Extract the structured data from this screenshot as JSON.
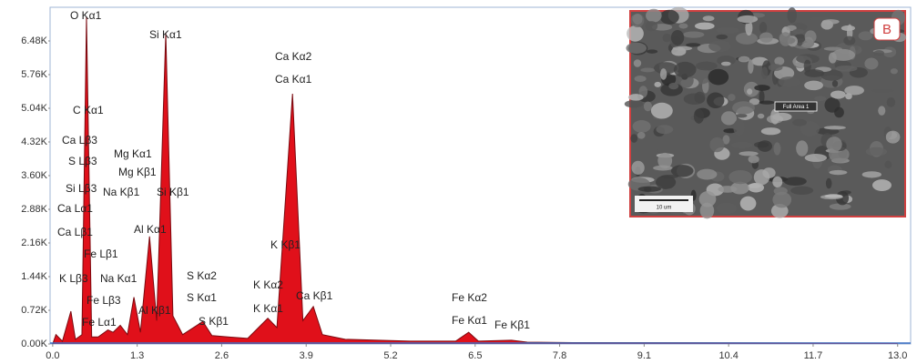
{
  "chart_data": {
    "type": "area",
    "x": [
      0.0,
      0.05,
      0.15,
      0.28,
      0.35,
      0.45,
      0.52,
      0.6,
      0.7,
      0.85,
      0.93,
      1.04,
      1.15,
      1.25,
      1.35,
      1.49,
      1.6,
      1.74,
      1.85,
      2.0,
      2.31,
      2.45,
      2.7,
      3.0,
      3.31,
      3.45,
      3.69,
      3.85,
      4.01,
      4.15,
      4.5,
      5.5,
      6.2,
      6.4,
      6.55,
      7.06,
      7.3,
      8.0,
      13.0
    ],
    "values": [
      0,
      200,
      60,
      700,
      100,
      200,
      7000,
      150,
      150,
      300,
      250,
      400,
      200,
      1000,
      250,
      2300,
      500,
      6650,
      600,
      200,
      480,
      180,
      150,
      120,
      550,
      350,
      5350,
      500,
      800,
      200,
      100,
      60,
      60,
      250,
      60,
      80,
      40,
      30,
      20
    ],
    "color": "#e0101a",
    "xlim": [
      -0.04,
      13.2
    ],
    "ylim": [
      0,
      7200
    ],
    "xticks": [
      {
        "value": 0,
        "label": "0.0"
      },
      1.3,
      2.6,
      3.9,
      5.2,
      6.5,
      7.8,
      9.1,
      10.4,
      11.7,
      {
        "value": 13,
        "label": "13.0"
      }
    ],
    "yticks": [
      {
        "value": 0,
        "label": "0.00K"
      },
      {
        "value": 720,
        "label": "0.72K"
      },
      {
        "value": 1440,
        "label": "1.44K"
      },
      {
        "value": 2160,
        "label": "2.16K"
      },
      {
        "value": 2880,
        "label": "2.88K"
      },
      {
        "value": 3600,
        "label": "3.60K"
      },
      {
        "value": 4320,
        "label": "4.32K"
      },
      {
        "value": 5040,
        "label": "5.04K"
      },
      {
        "value": 5760,
        "label": "5.76K"
      },
      {
        "value": 6480,
        "label": "6.48K"
      }
    ],
    "annotations": [
      "O Kα1",
      "Si Kα1",
      "C Kα1",
      "Ca Lβ3",
      "Mg Kα1",
      "S Lβ3",
      "Mg Kβ1",
      "Si Lβ3",
      "Na Kβ1",
      "Si Kβ1",
      "Ca Lα1",
      "Al Kα1",
      "Ca Lβ1",
      "Fe Lβ1",
      "K Kβ1",
      "K Lβ3",
      "Na Kα1",
      "S Kα2",
      "K Kα2",
      "Fe Lβ3",
      "S Kα1",
      "K Kα1",
      "Ca Kβ1",
      "Fe Lα1",
      "Al Kβ1",
      "S Kβ1",
      "Ca Kα2",
      "Ca Kα1",
      "Fe Kα2",
      "Fe Kα1",
      "Fe Kβ1"
    ],
    "inset": {
      "label": "B",
      "area_label": "Full Area 1",
      "scale_label": "10 um"
    }
  }
}
